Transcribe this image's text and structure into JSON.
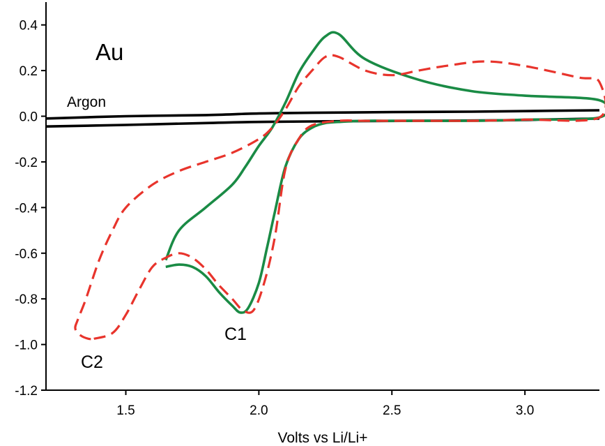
{
  "chart_data": {
    "type": "line",
    "xlabel": "Volts vs Li/Li+",
    "ylabel": "",
    "title": "",
    "xlim": [
      1.2,
      3.28
    ],
    "ylim": [
      -1.2,
      0.5
    ],
    "xticks": [
      1.5,
      2.0,
      2.5,
      3.0
    ],
    "xtick_labels": [
      "1.5",
      "2.0",
      "2.5",
      "3.0"
    ],
    "yticks": [
      0.4,
      0.2,
      0.0,
      -0.2,
      -0.4,
      -0.6,
      -0.8,
      -1.0,
      -1.2
    ],
    "ytick_labels": [
      "0.4",
      "0.2",
      "0.0",
      "-0.2",
      "-0.4",
      "-0.6",
      "-0.8",
      "-1.0",
      "-1.2"
    ],
    "grid": false,
    "annotations": {
      "au": "Au",
      "argon": "Argon",
      "c1": "C1",
      "c2": "C2"
    },
    "series": [
      {
        "style": "solid",
        "color": "#000000",
        "x": [
          1.2,
          1.5,
          1.8,
          2.0,
          2.2,
          2.5,
          2.8,
          3.1,
          3.28
        ],
        "y": [
          -0.01,
          0.0,
          0.005,
          0.012,
          0.015,
          0.018,
          0.02,
          0.024,
          0.026
        ]
      },
      {
        "style": "solid",
        "color": "#000000",
        "x": [
          1.2,
          1.5,
          1.8,
          2.0,
          2.3,
          2.6,
          2.9,
          3.1,
          3.28
        ],
        "y": [
          -0.045,
          -0.038,
          -0.03,
          -0.025,
          -0.022,
          -0.02,
          -0.018,
          -0.014,
          -0.01
        ]
      },
      {
        "style": "solid",
        "color": "#1a8b45",
        "x": [
          1.65,
          1.7,
          1.75,
          1.8,
          1.85,
          1.9,
          1.93,
          1.96,
          2.0,
          2.03,
          2.06,
          2.1,
          2.15,
          2.2,
          2.25,
          2.3,
          2.4,
          2.5,
          2.6,
          2.8,
          3.0,
          3.28,
          3.28,
          3.0,
          2.8,
          2.6,
          2.4,
          2.3,
          2.25,
          2.2,
          2.15,
          2.1,
          2.05,
          2.0,
          1.95,
          1.9,
          1.8,
          1.7,
          1.65
        ],
        "y": [
          -0.66,
          -0.65,
          -0.66,
          -0.7,
          -0.77,
          -0.83,
          -0.86,
          -0.84,
          -0.73,
          -0.58,
          -0.42,
          -0.22,
          -0.1,
          -0.05,
          -0.03,
          -0.025,
          -0.02,
          -0.02,
          -0.02,
          -0.02,
          -0.015,
          -0.005,
          0.07,
          0.09,
          0.11,
          0.16,
          0.25,
          0.36,
          0.35,
          0.28,
          0.19,
          0.06,
          -0.05,
          -0.13,
          -0.22,
          -0.3,
          -0.4,
          -0.5,
          -0.63
        ]
      },
      {
        "style": "dashed",
        "color": "#e8342c",
        "x": [
          1.38,
          1.45,
          1.5,
          1.55,
          1.6,
          1.65,
          1.7,
          1.75,
          1.8,
          1.85,
          1.9,
          1.94,
          1.98,
          2.02,
          2.06,
          2.1,
          2.15,
          2.2,
          2.3,
          2.4,
          2.5,
          2.6,
          2.8,
          3.0,
          3.28,
          3.28,
          3.2,
          3.0,
          2.85,
          2.7,
          2.6,
          2.5,
          2.4,
          2.3,
          2.25,
          2.2,
          2.15,
          2.1,
          2.05,
          2.0,
          1.9,
          1.8,
          1.7,
          1.6,
          1.5,
          1.45,
          1.4,
          1.35,
          1.32,
          1.31,
          1.33,
          1.36,
          1.38
        ],
        "y": [
          -0.975,
          -0.95,
          -0.87,
          -0.76,
          -0.66,
          -0.62,
          -0.6,
          -0.62,
          -0.67,
          -0.74,
          -0.8,
          -0.85,
          -0.85,
          -0.73,
          -0.53,
          -0.23,
          -0.1,
          -0.04,
          -0.02,
          -0.02,
          -0.02,
          -0.02,
          -0.02,
          -0.015,
          -0.005,
          0.15,
          0.17,
          0.22,
          0.24,
          0.22,
          0.2,
          0.18,
          0.2,
          0.26,
          0.26,
          0.2,
          0.13,
          0.03,
          -0.05,
          -0.1,
          -0.16,
          -0.2,
          -0.24,
          -0.3,
          -0.4,
          -0.5,
          -0.63,
          -0.8,
          -0.89,
          -0.93,
          -0.96,
          -0.975,
          -0.975
        ]
      }
    ]
  }
}
